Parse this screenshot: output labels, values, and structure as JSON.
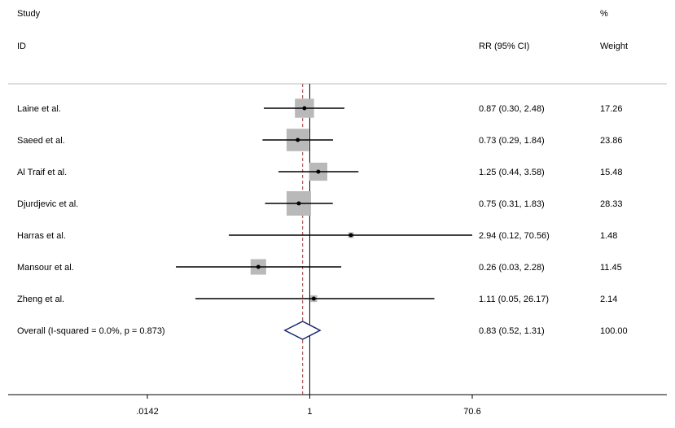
{
  "header": {
    "study_label": "Study",
    "id_label": "ID",
    "rr_label": "RR (95% CI)",
    "percent_label": "%",
    "weight_label": "Weight"
  },
  "chart_data": {
    "type": "forest",
    "scale": "log",
    "null_value": 1,
    "overall_effect": 0.83,
    "x_ticks": [
      {
        "value": 0.0142,
        "label": ".0142"
      },
      {
        "value": 1,
        "label": "1"
      },
      {
        "value": 70.6,
        "label": "70.6"
      }
    ],
    "studies": [
      {
        "name": "Laine et al.",
        "rr": 0.87,
        "lower": 0.3,
        "upper": 2.48,
        "rr_text": "0.87 (0.30, 2.48)",
        "weight": 17.26,
        "weight_text": "17.26"
      },
      {
        "name": "Saeed et al.",
        "rr": 0.73,
        "lower": 0.29,
        "upper": 1.84,
        "rr_text": "0.73 (0.29, 1.84)",
        "weight": 23.86,
        "weight_text": "23.86"
      },
      {
        "name": "Al Traif et al.",
        "rr": 1.25,
        "lower": 0.44,
        "upper": 3.58,
        "rr_text": "1.25 (0.44, 3.58)",
        "weight": 15.48,
        "weight_text": "15.48"
      },
      {
        "name": "Djurdjevic et al.",
        "rr": 0.75,
        "lower": 0.31,
        "upper": 1.83,
        "rr_text": "0.75 (0.31, 1.83)",
        "weight": 28.33,
        "weight_text": "28.33"
      },
      {
        "name": "Harras et al.",
        "rr": 2.94,
        "lower": 0.12,
        "upper": 70.56,
        "rr_text": "2.94 (0.12, 70.56)",
        "weight": 1.48,
        "weight_text": "1.48"
      },
      {
        "name": "Mansour et al.",
        "rr": 0.26,
        "lower": 0.03,
        "upper": 2.28,
        "rr_text": "0.26 (0.03, 2.28)",
        "weight": 11.45,
        "weight_text": "11.45"
      },
      {
        "name": "Zheng et al.",
        "rr": 1.11,
        "lower": 0.05,
        "upper": 26.17,
        "rr_text": "1.11 (0.05, 26.17)",
        "weight": 2.14,
        "weight_text": "2.14"
      }
    ],
    "overall": {
      "name": "Overall  (I-squared = 0.0%, p = 0.873)",
      "rr": 0.83,
      "lower": 0.52,
      "upper": 1.31,
      "rr_text": "0.83 (0.52, 1.31)",
      "weight": 100.0,
      "weight_text": "100.00"
    },
    "colors": {
      "box": "#b9b9b9",
      "line": "#000000",
      "diamond": "#1a2a6e",
      "overall_line": "#9a3b3b",
      "separator": "#bdbdbd"
    }
  }
}
